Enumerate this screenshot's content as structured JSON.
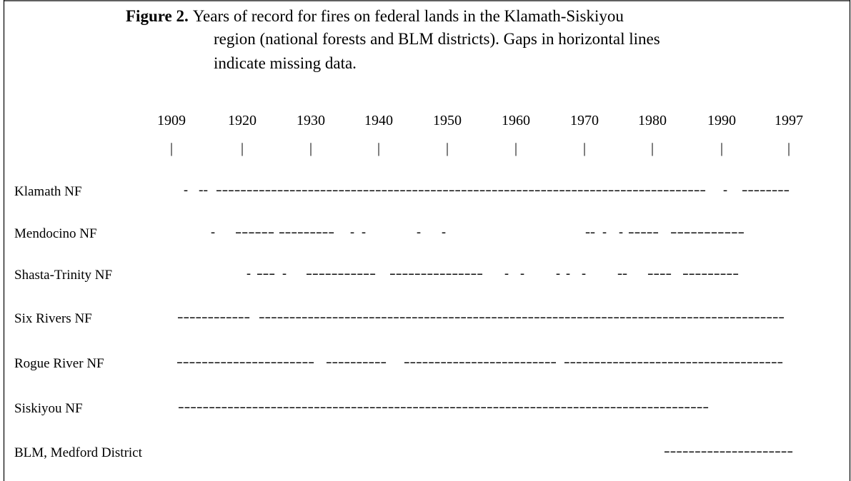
{
  "caption": {
    "label": "Figure 2.",
    "lines": [
      "Years of record for fires on federal lands in the Klamath-Siskiyou",
      "region (national forests and BLM districts). Gaps in horizontal lines",
      "indicate missing data."
    ]
  },
  "years": [
    "1909",
    "1920",
    "1930",
    "1940",
    "1950",
    "1960",
    "1970",
    "1980",
    "1990",
    "1997"
  ],
  "ticks": [
    "|",
    "|",
    "|",
    "|",
    "|",
    "|",
    "|",
    "|",
    "|",
    "|"
  ],
  "rows": [
    {
      "label": "Klamath NF",
      "segments": [
        "-",
        "--",
        "--------------------------------------------------------------------------------",
        "-",
        "--------"
      ]
    },
    {
      "label": "Mendocino NF",
      "segments": [
        "-",
        "------",
        "---------",
        "-",
        "-",
        "-",
        "-",
        "--",
        "-",
        "-",
        "-----",
        "-----------"
      ]
    },
    {
      "label": "Shasta-Trinity NF",
      "segments": [
        "-",
        "---",
        "-",
        "-----------",
        "---------------",
        "-",
        "-",
        "-",
        "-",
        "-",
        "--",
        "----",
        "---------"
      ]
    },
    {
      "label": "Six Rivers NF",
      "segments": [
        "------------",
        "--------------------------------------------------------------------------------------"
      ]
    },
    {
      "label": "Rogue River NF",
      "segments": [
        "----------------------",
        "----------",
        "-------------------------",
        "------------------------------------"
      ]
    },
    {
      "label": "Siskiyou NF",
      "segments": [
        "--------------------------------------------------------------------------------------"
      ]
    },
    {
      "label": "BLM, Medford District",
      "segments": [
        "---------------------"
      ]
    }
  ]
}
